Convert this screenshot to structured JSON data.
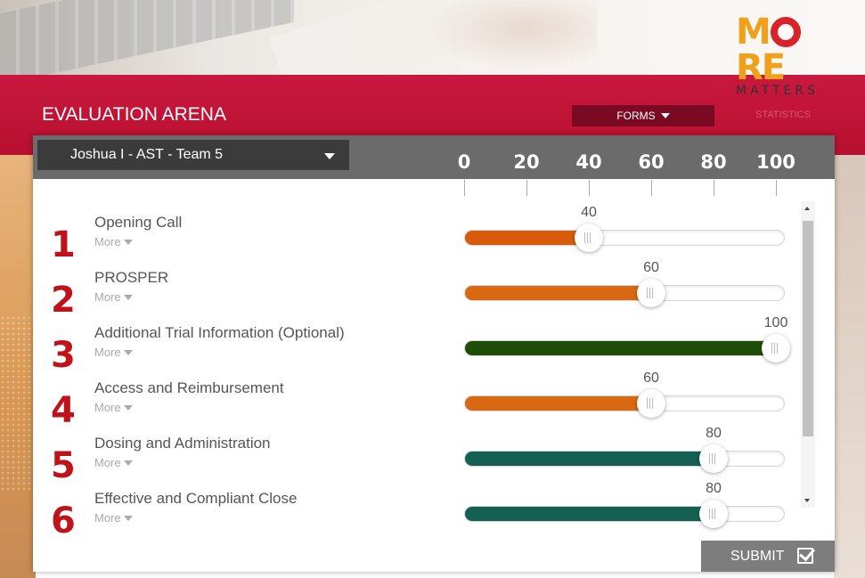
{
  "brand": {
    "logo_top": "MORE",
    "logo_bottom": "MATTERS"
  },
  "header": {
    "title": "EVALUATION ARENA",
    "forms_label": "FORMS",
    "statistics_label": "STATISTICS"
  },
  "selector": {
    "value": "Joshua I  - AST - Team 5"
  },
  "scale": [
    "0",
    "20",
    "40",
    "60",
    "80",
    "100"
  ],
  "more_label": "More",
  "items": [
    {
      "num": "1",
      "label": "Opening Call",
      "value": 40,
      "value_text": "40",
      "color": "#d85a0a"
    },
    {
      "num": "2",
      "label": "PROSPER",
      "value": 60,
      "value_text": "60",
      "color": "#d86812"
    },
    {
      "num": "3",
      "label": "Additional Trial Information (Optional)",
      "value": 100,
      "value_text": "100",
      "color": "#1e4d06"
    },
    {
      "num": "4",
      "label": "Access and Reimbursement",
      "value": 60,
      "value_text": "60",
      "color": "#d86812"
    },
    {
      "num": "5",
      "label": "Dosing and Administration",
      "value": 80,
      "value_text": "80",
      "color": "#146152"
    },
    {
      "num": "6",
      "label": "Effective and Compliant Close",
      "value": 80,
      "value_text": "80",
      "color": "#146152"
    }
  ],
  "submit_label": "SUBMIT",
  "colors": {
    "accent_red": "#c9183e",
    "number_red": "#c0121b",
    "dark_bar": "#3b3b3b"
  }
}
